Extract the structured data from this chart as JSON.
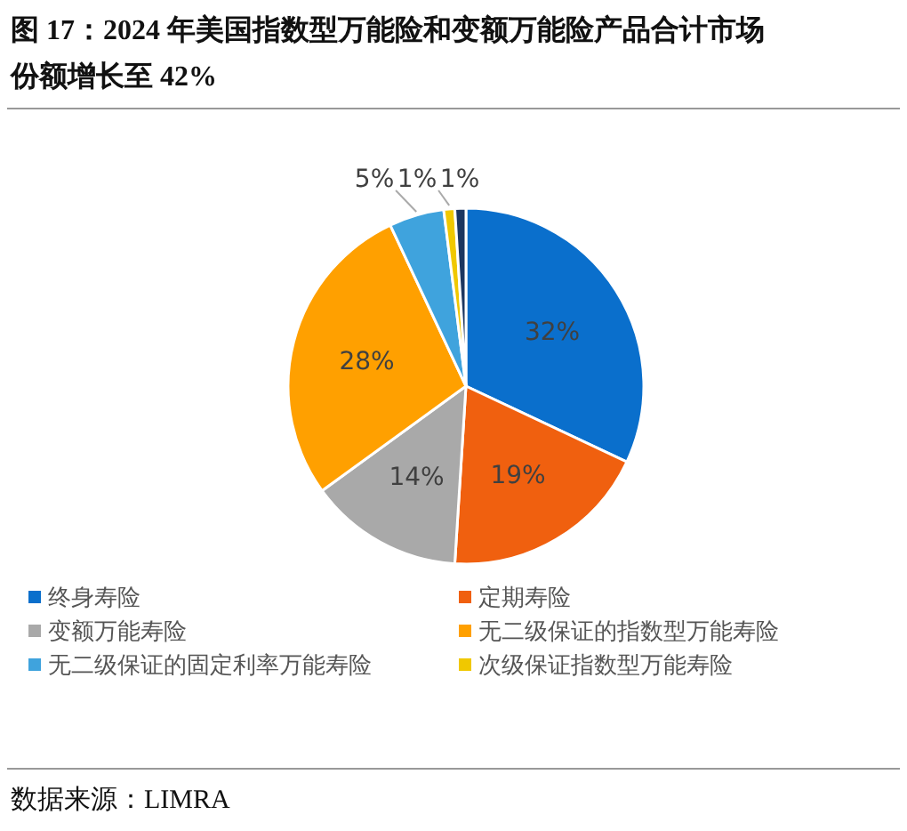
{
  "chart_data": {
    "type": "pie",
    "title": "图 17：2024 年美国指数型万能险和变额万能险产品合计市场份额增长至 42%",
    "categories": [
      "终身寿险",
      "定期寿险",
      "变额万能寿险",
      "无二级保证的指数型万能寿险",
      "无二级保证的固定利率万能寿险",
      "次级保证指数型万能寿险",
      null
    ],
    "values": [
      32,
      19,
      14,
      28,
      5,
      1,
      1
    ],
    "colors": [
      "#0a6fcc",
      "#f0600f",
      "#a9a9a9",
      "#ffa000",
      "#3fa3dd",
      "#f0c800",
      "#1c3660"
    ],
    "value_labels": [
      "32%",
      "19%",
      "14%",
      "28%",
      "5%",
      "1%",
      "1%"
    ],
    "legend": "bottom",
    "annotations": [
      "数据来源：LIMRA"
    ]
  }
}
